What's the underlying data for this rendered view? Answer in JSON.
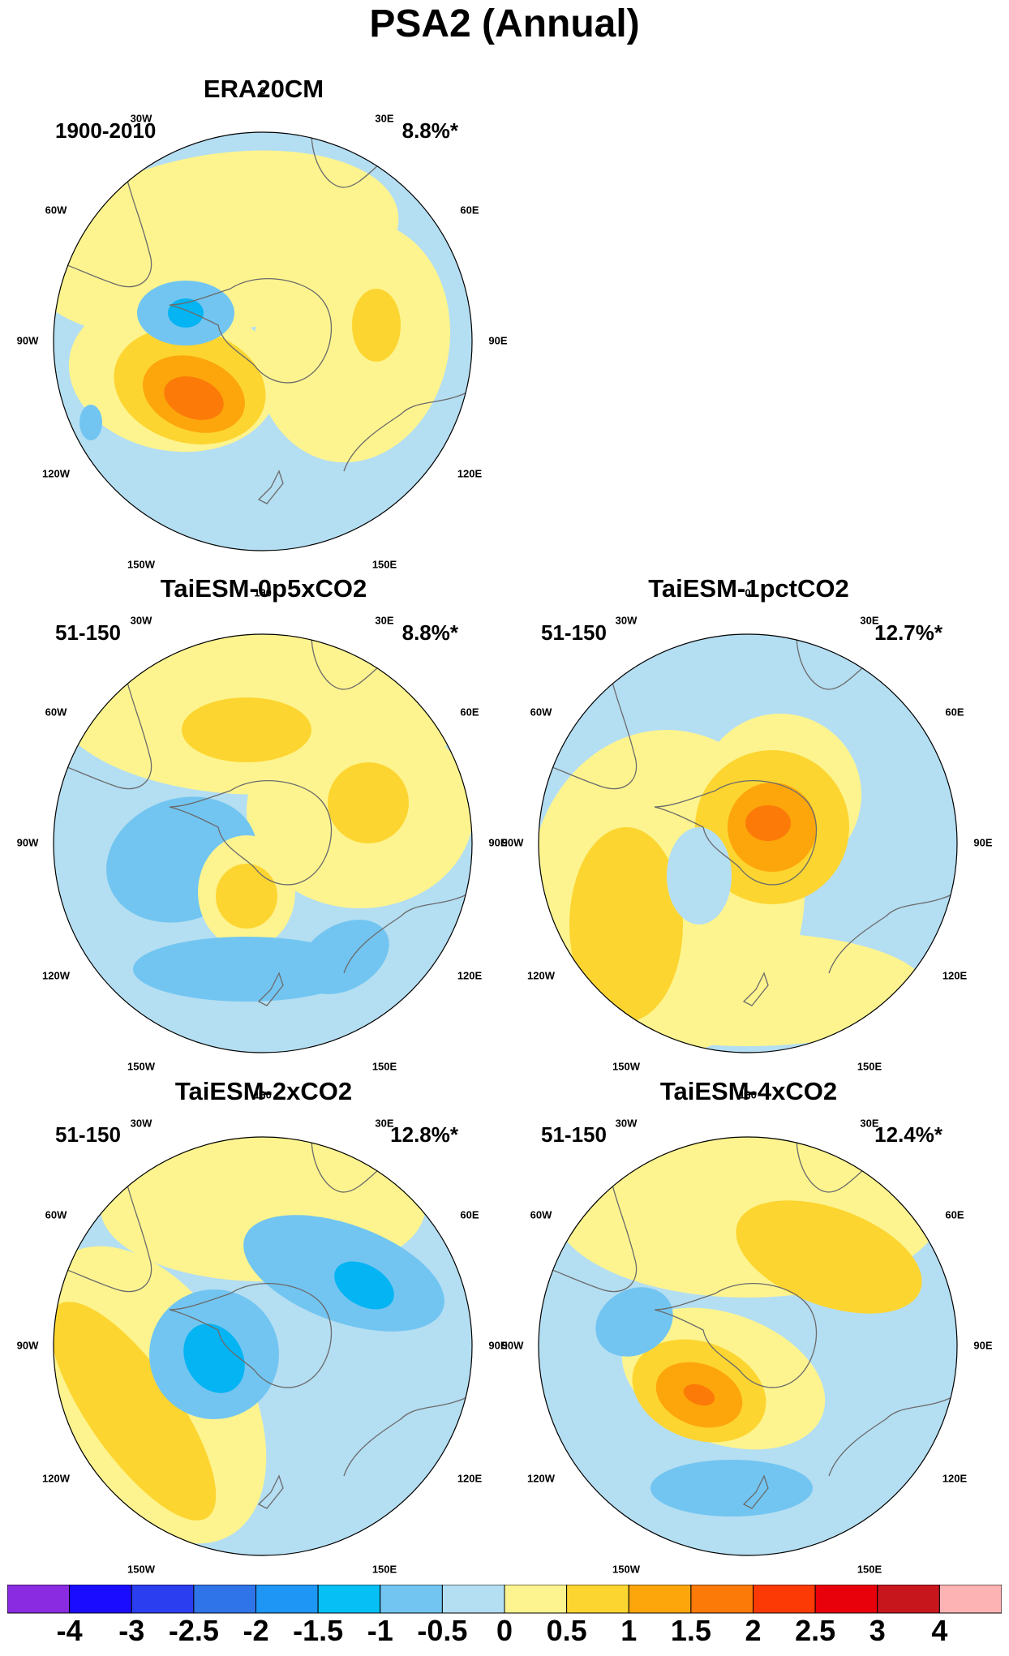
{
  "figure_title": "PSA2 (Annual)",
  "longitude_labels": {
    "lon_0": "0",
    "lon_30e": "30E",
    "lon_60e": "60E",
    "lon_90e": "90E",
    "lon_120e": "120E",
    "lon_150e": "150E",
    "lon_180": "180",
    "lon_150w": "150W",
    "lon_120w": "120W",
    "lon_90w": "90W",
    "lon_60w": "60W",
    "lon_30w": "30W"
  },
  "colors": {
    "ocean_neg": "#b4def2",
    "weak_pos": "#fdf48f",
    "pos1": "#fdd531",
    "pos2": "#fda60c",
    "pos3": "#fb7a08",
    "neg1": "#72c5f1",
    "neg2": "#05b4f2",
    "coast": "#6b6b6b"
  },
  "panels": [
    {
      "title": "ERA20CM",
      "period": "1900-2010",
      "variance": "8.8%*"
    },
    {
      "title": "TaiESM-0p5xCO2",
      "period": "51-150",
      "variance": "8.8%*"
    },
    {
      "title": "TaiESM-1pctCO2",
      "period": "51-150",
      "variance": "12.7%*"
    },
    {
      "title": "TaiESM-2xCO2",
      "period": "51-150",
      "variance": "12.8%*"
    },
    {
      "title": "TaiESM-4xCO2",
      "period": "51-150",
      "variance": "12.4%*"
    }
  ],
  "colorbar": {
    "colors": [
      "#8a2be2",
      "#1a0dff",
      "#2b3ef0",
      "#2f74e8",
      "#1e96f5",
      "#05bff5",
      "#72c5f1",
      "#b4def2",
      "#fdf48f",
      "#fdd531",
      "#fda60c",
      "#fb7a08",
      "#fb3a06",
      "#e8000a",
      "#c8161d",
      "#fdb3b3"
    ],
    "tick_labels": [
      "-4",
      "-3",
      "-2.5",
      "-2",
      "-1.5",
      "-1",
      "-0.5",
      "0",
      "0.5",
      "1",
      "1.5",
      "2",
      "2.5",
      "3",
      "4"
    ]
  }
}
